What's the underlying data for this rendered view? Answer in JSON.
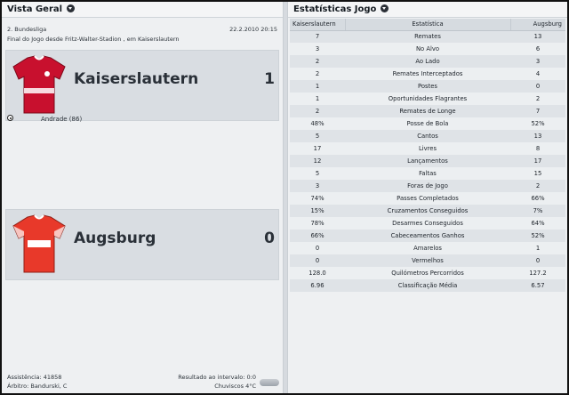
{
  "left": {
    "title": "Vista Geral",
    "competition": "2. Bundesliga",
    "date": "22.2.2010 20:15",
    "venue": "Final do Jogo desde Fritz-Walter-Stadion , em Kaiserslautern",
    "home": {
      "name": "Kaiserslautern",
      "score": "1",
      "scorer": "Andrade (86)",
      "shirt_color": "#c8102e"
    },
    "away": {
      "name": "Augsburg",
      "score": "0",
      "shirt_color": "#e8392a"
    },
    "attendance": "Assistência: 41858",
    "referee": "Árbitro: Bandurski, C",
    "halftime": "Resultado ao intervalo: 0:0",
    "weather": "Chuviscos 4°C"
  },
  "right": {
    "title": "Estatísticas Jogo",
    "columns": {
      "home": "Kaiserslautern",
      "stat": "Estatística",
      "away": "Augsburg"
    },
    "rows": [
      {
        "home": "7",
        "stat": "Remates",
        "away": "13"
      },
      {
        "home": "3",
        "stat": "No Alvo",
        "away": "6"
      },
      {
        "home": "2",
        "stat": "Ao Lado",
        "away": "3"
      },
      {
        "home": "2",
        "stat": "Remates Interceptados",
        "away": "4"
      },
      {
        "home": "1",
        "stat": "Postes",
        "away": "0"
      },
      {
        "home": "1",
        "stat": "Oportunidades Flagrantes",
        "away": "2"
      },
      {
        "home": "2",
        "stat": "Remates de Longe",
        "away": "7"
      },
      {
        "home": "48%",
        "stat": "Posse de Bola",
        "away": "52%"
      },
      {
        "home": "5",
        "stat": "Cantos",
        "away": "13"
      },
      {
        "home": "17",
        "stat": "Livres",
        "away": "8"
      },
      {
        "home": "12",
        "stat": "Lançamentos",
        "away": "17"
      },
      {
        "home": "5",
        "stat": "Faltas",
        "away": "15"
      },
      {
        "home": "3",
        "stat": "Foras de Jogo",
        "away": "2"
      },
      {
        "home": "74%",
        "stat": "Passes Completados",
        "away": "66%"
      },
      {
        "home": "15%",
        "stat": "Cruzamentos Conseguidos",
        "away": "7%"
      },
      {
        "home": "78%",
        "stat": "Desarmes Conseguidos",
        "away": "64%"
      },
      {
        "home": "66%",
        "stat": "Cabeceamentos Ganhos",
        "away": "52%"
      },
      {
        "home": "0",
        "stat": "Amarelos",
        "away": "1"
      },
      {
        "home": "0",
        "stat": "Vermelhos",
        "away": "0"
      },
      {
        "home": "128.0",
        "stat": "Quilómetros Percorridos",
        "away": "127.2"
      },
      {
        "home": "6.96",
        "stat": "Classificação Média",
        "away": "6.57"
      }
    ]
  }
}
